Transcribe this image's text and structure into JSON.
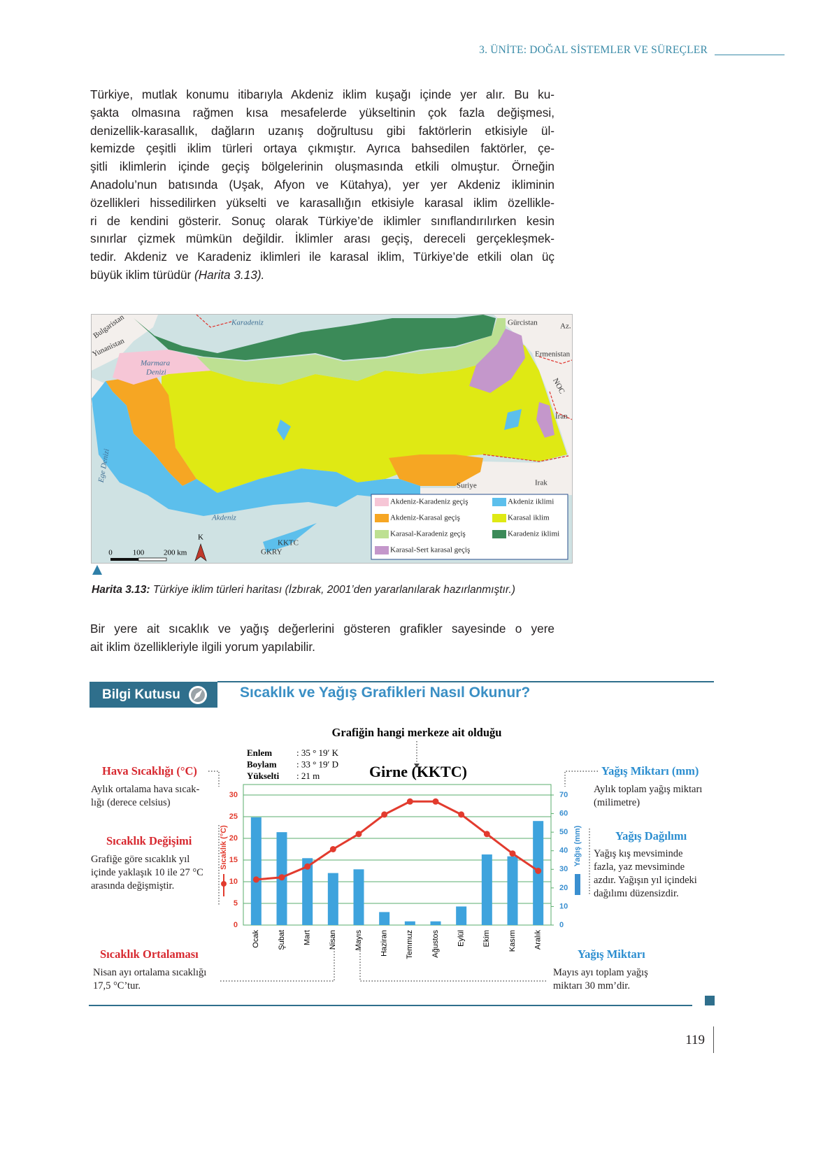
{
  "header": {
    "unit": "3. ÜNİTE: DOĞAL SİSTEMLER VE SÜREÇLER"
  },
  "intro": {
    "lines": [
      "Türkiye, mutlak konumu itibarıyla Akdeniz iklim kuşağı içinde yer alır. Bu ku-",
      "şakta olmasına rağmen kısa mesafelerde yükseltinin çok fazla değişmesi,",
      "denizellik-karasallık, dağların uzanış doğrultusu gibi faktörlerin etkisiyle ül-",
      "kemizde çeşitli iklim türleri ortaya çıkmıştır. Ayrıca bahsedilen faktörler, çe-",
      "şitli iklimlerin içinde geçiş bölgelerinin oluşmasında etkili olmuştur. Örneğin",
      "Anadolu’nun batısında (Uşak, Afyon ve Kütahya), yer yer Akdeniz ikliminin",
      "özellikleri hissedilirken yükselti ve karasallığın etkisiyle karasal iklim özellikle-",
      "ri de kendini gösterir. Sonuç olarak Türkiye’de iklimler sınıflandırılırken kesin",
      "sınırlar çizmek mümkün değildir. İklimler arası geçiş, dereceli gerçekleşmek-",
      "tedir. Akdeniz ve Karadeniz iklimleri ile karasal iklim, Türkiye’de etkili olan üç"
    ],
    "last_line": "büyük iklim türüdür",
    "last_ref": "(Harita 3.13)."
  },
  "map": {
    "labels": [
      "Karadeniz",
      "Gürcistan",
      "Az.",
      "Ermenistan",
      "NOC",
      "İran",
      "Irak",
      "Suriye",
      "Bulgaristan",
      "Yunanistan",
      "Marmara",
      "Denizi",
      "Ege Denizi",
      "Akdeniz",
      "KKTC",
      "GKRY"
    ],
    "legend": [
      {
        "label": "Akdeniz-Karadeniz geçiş",
        "color": "#f6c6d6"
      },
      {
        "label": "Akdeniz-Karasal geçiş",
        "color": "#f6a623"
      },
      {
        "label": "Karasal-Karadeniz geçiş",
        "color": "#bde092"
      },
      {
        "label": "Karasal-Sert karasal geçiş",
        "color": "#c497cb"
      },
      {
        "label": "Akdeniz iklimi",
        "color": "#5cbfec"
      },
      {
        "label": "Karasal iklim",
        "color": "#dfe914"
      },
      {
        "label": "Karadeniz  iklimi",
        "color": "#3b8a58"
      }
    ],
    "scale": [
      "0",
      "100",
      "200 km"
    ],
    "north": "K"
  },
  "map_caption": {
    "label": "Harita 3.13:",
    "text": "Türkiye iklim türleri haritası (İzbırak, 2001’den yararlanılarak hazırlanmıştır.)"
  },
  "paragraph2": {
    "lines": [
      "Bir yere ait sıcaklık ve yağış değerlerini gösteren grafikler sayesinde o yere",
      "ait iklim özellikleriyle ilgili yorum yapılabilir."
    ]
  },
  "info_box": {
    "badge": "Bilgi Kutusu",
    "title": "Sıcaklık ve Yağış Grafikleri Nasıl Okunur?",
    "center_note": "Grafiğin hangi merkeze ait olduğu",
    "annotations": [
      {
        "title": "Hava Sıcaklığı (°C)",
        "lines": [
          "Aylık ortalama hava sıcak-",
          "lığı (derece celsius)"
        ]
      },
      {
        "title": "Sıcaklık Değişimi",
        "lines": [
          "Grafiğe göre sıcaklık yıl",
          "içinde yaklaşık 10 ile 27 °C",
          "arasında değişmiştir."
        ]
      },
      {
        "title": "Sıcaklık Ortalaması",
        "lines": [
          "Nisan ayı ortalama sıcaklığı",
          "17,5 °C’tur."
        ]
      },
      {
        "title": "Yağış Miktarı (mm)",
        "lines": [
          "Aylık toplam yağış miktarı",
          "(milimetre)"
        ]
      },
      {
        "title": "Yağış Dağılımı",
        "lines": [
          "Yağış kış mevsiminde",
          "fazla, yaz mevsiminde",
          "azdır. Yağışın yıl içindeki",
          "dağılımı düzensizdir."
        ]
      },
      {
        "title": "Yağış Miktarı",
        "lines": [
          "Mayıs ayı toplam yağış",
          "miktarı 30 mm’dir."
        ]
      }
    ]
  },
  "chart_data": {
    "type": "bar",
    "title": "Girne (KKTC)",
    "station": [
      {
        "label": "Enlem",
        "value": ": 35 ° 19′ K"
      },
      {
        "label": "Boylam",
        "value": ": 33 ° 19′ D"
      },
      {
        "label": "Yükselti",
        "value": ": 21 m"
      }
    ],
    "ylabel": "Sıcaklık (°C)",
    "y2label": "Yağış (mm)",
    "categories": [
      "Ocak",
      "Şubat",
      "Mart",
      "Nisan",
      "Mayıs",
      "Haziran",
      "Temmuz",
      "Ağustos",
      "Eylül",
      "Ekim",
      "Kasım",
      "Aralık"
    ],
    "series": [
      {
        "type": "bar",
        "axis": "y2",
        "color": "#3ea3dd",
        "values": [
          58,
          50,
          36,
          28,
          30,
          7,
          2,
          2,
          10,
          38,
          37,
          56
        ]
      },
      {
        "type": "line",
        "color": "#e23b2e",
        "values": [
          10.5,
          11,
          13.5,
          17.5,
          21,
          25.5,
          28.5,
          28.5,
          25.5,
          21,
          16.5,
          12.5
        ]
      }
    ],
    "ylim": [
      0,
      30
    ],
    "yticks": [
      0,
      5,
      10,
      15,
      20,
      25,
      30
    ],
    "y2lim": [
      0,
      70
    ],
    "y2ticks": [
      0,
      10,
      20,
      30,
      40,
      50,
      60,
      70
    ],
    "grid": true,
    "ycolor": "#e23b2e",
    "y2color": "#3a8fd0"
  },
  "page_number": "119"
}
